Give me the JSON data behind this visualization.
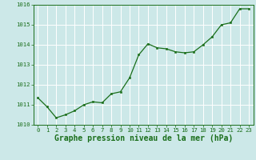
{
  "x": [
    0,
    1,
    2,
    3,
    4,
    5,
    6,
    7,
    8,
    9,
    10,
    11,
    12,
    13,
    14,
    15,
    16,
    17,
    18,
    19,
    20,
    21,
    22,
    23
  ],
  "y": [
    1011.35,
    1010.9,
    1010.35,
    1010.5,
    1010.7,
    1011.0,
    1011.15,
    1011.1,
    1011.55,
    1011.65,
    1012.35,
    1013.5,
    1014.05,
    1013.85,
    1013.8,
    1013.65,
    1013.6,
    1013.65,
    1014.0,
    1014.4,
    1015.0,
    1015.1,
    1015.8,
    1015.8
  ],
  "ylim": [
    1010,
    1016
  ],
  "xlim_min": -0.5,
  "xlim_max": 23.5,
  "yticks": [
    1010,
    1011,
    1012,
    1013,
    1014,
    1015,
    1016
  ],
  "xticks": [
    0,
    1,
    2,
    3,
    4,
    5,
    6,
    7,
    8,
    9,
    10,
    11,
    12,
    13,
    14,
    15,
    16,
    17,
    18,
    19,
    20,
    21,
    22,
    23
  ],
  "line_color": "#1a6e1a",
  "marker_color": "#1a6e1a",
  "bg_color": "#cce8e8",
  "grid_color": "#ffffff",
  "xlabel": "Graphe pression niveau de la mer (hPa)",
  "xlabel_color": "#1a6e1a",
  "tick_color": "#1a6e1a",
  "axis_color": "#1a6e1a",
  "tick_fontsize": 5.2,
  "xlabel_fontsize": 7.0,
  "linewidth": 0.9,
  "markersize": 2.0
}
